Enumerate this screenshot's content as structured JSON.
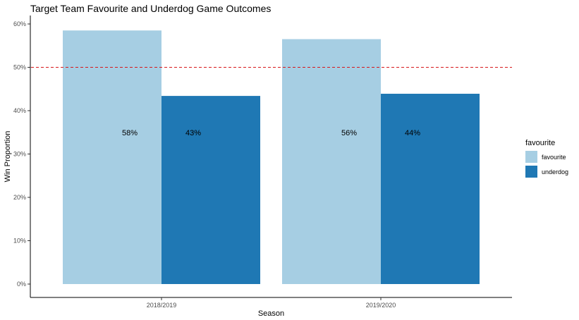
{
  "chart_data": {
    "type": "bar",
    "title": "Target Team Favourite and Underdog Game Outcomes",
    "xlabel": "Season",
    "ylabel": "Win Proportion",
    "categories": [
      "2018/2019",
      "2019/2020"
    ],
    "series": [
      {
        "name": "favourite",
        "values": [
          0.585,
          0.565
        ],
        "labels": [
          "58%",
          "56%"
        ],
        "color": "#A6CEE3"
      },
      {
        "name": "underdog",
        "values": [
          0.434,
          0.439
        ],
        "labels": [
          "43%",
          "44%"
        ],
        "color": "#1F78B4"
      }
    ],
    "ylim": [
      0,
      0.6
    ],
    "yticks": [
      0,
      0.1,
      0.2,
      0.3,
      0.4,
      0.5,
      0.6
    ],
    "ytick_labels": [
      "0%",
      "10%",
      "20%",
      "30%",
      "40%",
      "50%",
      "60%"
    ],
    "reference_line": {
      "y": 0.5,
      "color": "#D7191C",
      "style": "dashed"
    },
    "label_y": 0.35,
    "legend": {
      "title": "favourite",
      "placement": "right"
    },
    "grid": false
  }
}
